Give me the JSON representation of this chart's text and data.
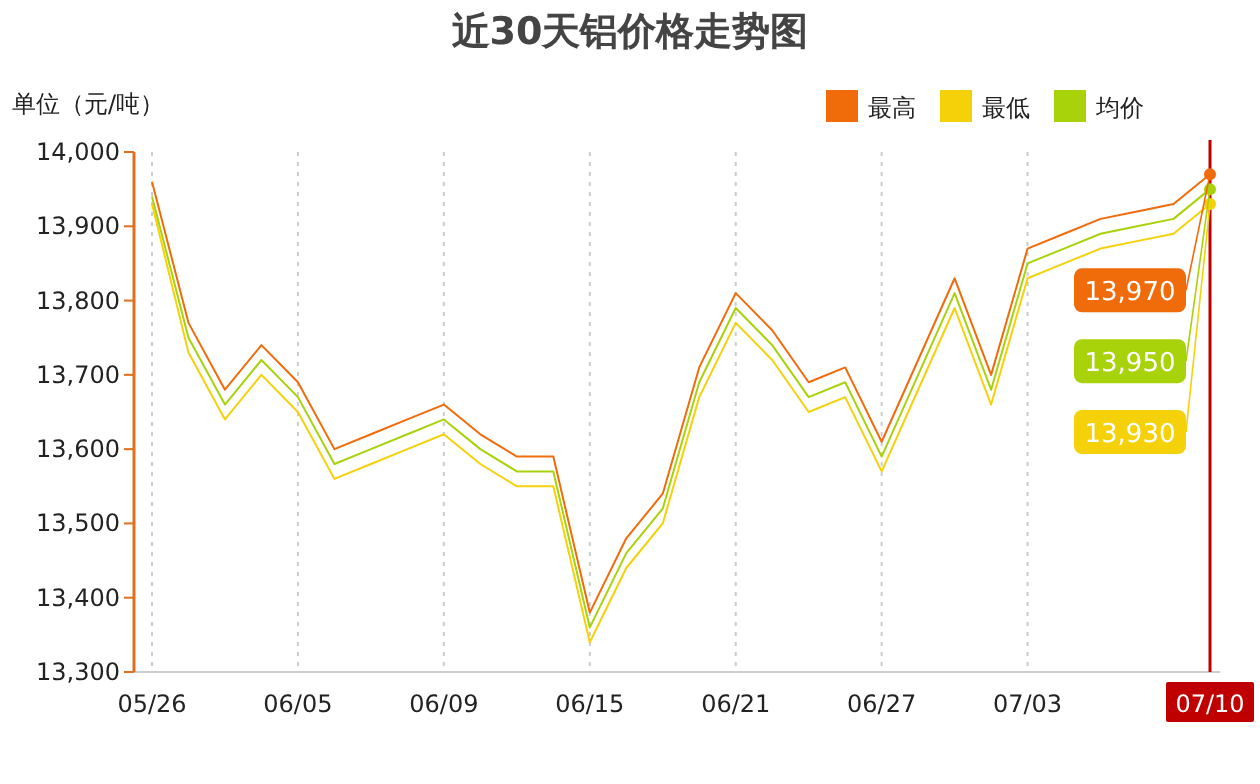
{
  "chart_data": {
    "type": "line",
    "title": "近30天铝价格走势图",
    "ylabel": "单位（元/吨）",
    "categories": [
      "05/26",
      null,
      null,
      null,
      "06/05",
      null,
      null,
      null,
      "06/09",
      null,
      null,
      null,
      "06/15",
      null,
      null,
      null,
      "06/21",
      null,
      null,
      null,
      "06/27",
      null,
      null,
      null,
      "07/03",
      null,
      null,
      null,
      null,
      "07/10"
    ],
    "series": [
      {
        "name": "最高",
        "color": "#f06b0a",
        "values": [
          13960,
          13770,
          13680,
          13740,
          13690,
          13600,
          13620,
          13640,
          13660,
          13620,
          13590,
          13590,
          13380,
          13480,
          13540,
          13710,
          13810,
          13760,
          13690,
          13710,
          13610,
          13720,
          13830,
          13700,
          13870,
          13890,
          13910,
          13920,
          13930,
          13970
        ],
        "value_labels": [
          null,
          null,
          null,
          null,
          null,
          null,
          null,
          null,
          null,
          null,
          null,
          null,
          null,
          null,
          null,
          null,
          null,
          null,
          null,
          null,
          null,
          null,
          null,
          null,
          null,
          null,
          null,
          null,
          null,
          "13,970"
        ]
      },
      {
        "name": "最低",
        "color": "#f5d10a",
        "values": [
          13930,
          13730,
          13640,
          13700,
          13650,
          13560,
          13580,
          13600,
          13620,
          13580,
          13550,
          13550,
          13340,
          13440,
          13500,
          13670,
          13770,
          13720,
          13650,
          13670,
          13570,
          13680,
          13790,
          13660,
          13830,
          13850,
          13870,
          13880,
          13890,
          13930
        ],
        "value_labels": [
          null,
          null,
          null,
          null,
          null,
          null,
          null,
          null,
          null,
          null,
          null,
          null,
          null,
          null,
          null,
          null,
          null,
          null,
          null,
          null,
          null,
          null,
          null,
          null,
          null,
          null,
          null,
          null,
          null,
          "13,930"
        ]
      },
      {
        "name": "均价",
        "color": "#a8d20a",
        "values": [
          13940,
          13750,
          13660,
          13720,
          13670,
          13580,
          13600,
          13620,
          13640,
          13600,
          13570,
          13570,
          13360,
          13460,
          13520,
          13690,
          13790,
          13740,
          13670,
          13690,
          13590,
          13700,
          13810,
          13680,
          13850,
          13870,
          13890,
          13900,
          13910,
          13950
        ],
        "value_labels": [
          null,
          null,
          null,
          null,
          null,
          null,
          null,
          null,
          null,
          null,
          null,
          null,
          null,
          null,
          null,
          null,
          null,
          null,
          null,
          null,
          null,
          null,
          null,
          null,
          null,
          null,
          null,
          null,
          null,
          "13,950"
        ]
      }
    ],
    "ylim": [
      13300,
      14000
    ],
    "yticks": [
      {
        "value": 13300,
        "label": "13,300"
      },
      {
        "value": 13400,
        "label": "13,400"
      },
      {
        "value": 13500,
        "label": "13,500"
      },
      {
        "value": 13600,
        "label": "13,600"
      },
      {
        "value": 13700,
        "label": "13,700"
      },
      {
        "value": 13800,
        "label": "13,800"
      },
      {
        "value": 13900,
        "label": "13,900"
      },
      {
        "value": 14000,
        "label": "14,000"
      }
    ],
    "ref_lines": [
      {
        "axis": "x",
        "value": "07/10",
        "color": "#c00000"
      }
    ],
    "grid": "x",
    "legend": "top right",
    "marker": "none",
    "line_style": "solid"
  }
}
